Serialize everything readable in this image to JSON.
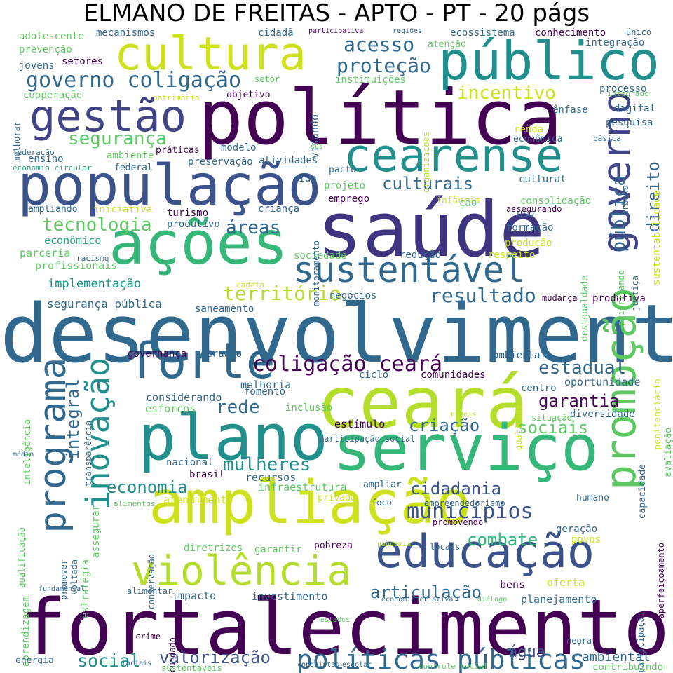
{
  "title": "ELMANO DE FREITAS - APTO - PT - 20 págs",
  "palette": {
    "dark_purple": "#440154",
    "indigo": "#3b528b",
    "slate_blue": "#414487",
    "teal": "#21908d",
    "steel_blue": "#31688e",
    "green": "#35b779",
    "light_green": "#5ec962",
    "lime": "#b5de2b",
    "yellow": "#cde11d",
    "light_teal": "#22a884"
  },
  "words": [
    {
      "text": "desenvolvimento",
      "color": "#31688e"
    },
    {
      "text": "fortalecimento",
      "color": "#440154"
    },
    {
      "text": "política",
      "color": "#440154"
    },
    {
      "text": "saúde",
      "color": "#3e3580"
    },
    {
      "text": "ceará",
      "color": "#b5de2b"
    },
    {
      "text": "serviço",
      "color": "#35b779"
    },
    {
      "text": "plano",
      "color": "#21908d"
    },
    {
      "text": "ampliação",
      "color": "#cde11d"
    },
    {
      "text": "população",
      "color": "#3b528b"
    },
    {
      "text": "ações",
      "color": "#35b779"
    },
    {
      "text": "cultura",
      "color": "#cde11d"
    },
    {
      "text": "público",
      "color": "#21908d"
    },
    {
      "text": "gestão",
      "color": "#414487"
    },
    {
      "text": "educação",
      "color": "#3b528b"
    },
    {
      "text": "cearense",
      "color": "#21908d"
    },
    {
      "text": "forte",
      "color": "#31688e"
    },
    {
      "text": "violência",
      "color": "#b5de2b"
    },
    {
      "text": "programa",
      "color": "#31688e"
    },
    {
      "text": "promoção",
      "color": "#5ec962"
    },
    {
      "text": "governo",
      "color": "#414487"
    },
    {
      "text": "sustentável",
      "color": "#31688e"
    },
    {
      "text": "inovação",
      "color": "#21908d"
    },
    {
      "text": "políticas públicas",
      "color": "#31688e"
    },
    {
      "text": "coligação ceará",
      "color": "#440154"
    },
    {
      "text": "municípios",
      "color": "#3b528b"
    },
    {
      "text": "território",
      "color": "#b5de2b"
    },
    {
      "text": "resultado",
      "color": "#31688e"
    },
    {
      "text": "segurança",
      "color": "#5ec962"
    },
    {
      "text": "governo coligação",
      "color": "#31688e"
    },
    {
      "text": "proteção",
      "color": "#31688e"
    },
    {
      "text": "acesso",
      "color": "#31688e"
    },
    {
      "text": "incentivo",
      "color": "#cde11d"
    },
    {
      "text": "tecnologia",
      "color": "#5ec962"
    },
    {
      "text": "culturais",
      "color": "#31688e"
    },
    {
      "text": "pública",
      "color": "#31688e"
    },
    {
      "text": "direito",
      "color": "#31688e"
    },
    {
      "text": "áreas",
      "color": "#31688e"
    },
    {
      "text": "estadual",
      "color": "#31688e"
    },
    {
      "text": "garantia",
      "color": "#440154"
    },
    {
      "text": "sociais",
      "color": "#5ec962"
    },
    {
      "text": "criação",
      "color": "#31688e"
    },
    {
      "text": "rede",
      "color": "#31688e"
    },
    {
      "text": "integral",
      "color": "#31688e"
    },
    {
      "text": "mulheres",
      "color": "#21908d"
    },
    {
      "text": "economia",
      "color": "#21908d"
    },
    {
      "text": "cidadania",
      "color": "#3b528b"
    },
    {
      "text": "combate",
      "color": "#35b779"
    },
    {
      "text": "articulação",
      "color": "#31688e"
    },
    {
      "text": "social",
      "color": "#21908d"
    },
    {
      "text": "valorização",
      "color": "#3b528b"
    },
    {
      "text": "água",
      "color": "#3b528b"
    },
    {
      "text": "ambiental",
      "color": "#31688e"
    },
    {
      "text": "implementação",
      "color": "#21908d"
    },
    {
      "text": "segurança pública",
      "color": "#31688e"
    },
    {
      "text": "profissionais",
      "color": "#5ec962"
    },
    {
      "text": "econômico",
      "color": "#22a884"
    },
    {
      "text": "parceria",
      "color": "#5ec962"
    },
    {
      "text": "investimento",
      "color": "#31688e"
    },
    {
      "text": "impacto",
      "color": "#31688e"
    },
    {
      "text": "planejamento",
      "color": "#31688e"
    },
    {
      "text": "oferta",
      "color": "#cde11d"
    },
    {
      "text": "bens",
      "color": "#440154"
    },
    {
      "text": "infraestrutura",
      "color": "#5ec962"
    },
    {
      "text": "recursos",
      "color": "#31688e"
    },
    {
      "text": "atendimento",
      "color": "#cde11d"
    },
    {
      "text": "oportunidade",
      "color": "#31688e"
    },
    {
      "text": "diversidade",
      "color": "#31688e"
    },
    {
      "text": "estímulo",
      "color": "#440154"
    },
    {
      "text": "melhoria",
      "color": "#31688e"
    },
    {
      "text": "considerando",
      "color": "#31688e"
    },
    {
      "text": "esforços",
      "color": "#5ec962"
    },
    {
      "text": "fomento",
      "color": "#31688e"
    },
    {
      "text": "inclusão",
      "color": "#5ec962"
    },
    {
      "text": "gerando",
      "color": "#31688e"
    },
    {
      "text": "governança",
      "color": "#440154"
    },
    {
      "text": "ambientais",
      "color": "#31688e"
    },
    {
      "text": "ciclo",
      "color": "#31688e"
    },
    {
      "text": "comunidades",
      "color": "#440154"
    },
    {
      "text": "centro",
      "color": "#31688e"
    },
    {
      "text": "situação",
      "color": "#5ec962"
    },
    {
      "text": "produtiva",
      "color": "#440154"
    },
    {
      "text": "mudança",
      "color": "#440154"
    },
    {
      "text": "negócios",
      "color": "#31688e"
    },
    {
      "text": "saneamento",
      "color": "#31688e"
    },
    {
      "text": "cadeia",
      "color": "#cde11d"
    },
    {
      "text": "sociedade",
      "color": "#5ec962"
    },
    {
      "text": "redução",
      "color": "#31688e"
    },
    {
      "text": "respeito",
      "color": "#cde11d"
    },
    {
      "text": "produção",
      "color": "#cde11d"
    },
    {
      "text": "formação",
      "color": "#31688e"
    },
    {
      "text": "uso",
      "color": "#31688e"
    },
    {
      "text": "assegurando",
      "color": "#440154"
    },
    {
      "text": "consolidação",
      "color": "#5ec962"
    },
    {
      "text": "infância",
      "color": "#cde11d"
    },
    {
      "text": "ção",
      "color": "#5ec962"
    },
    {
      "text": "cultural",
      "color": "#31688e"
    },
    {
      "text": "emprego",
      "color": "#440154"
    },
    {
      "text": "projeto",
      "color": "#5ec962"
    },
    {
      "text": "pacto",
      "color": "#31688e"
    },
    {
      "text": "vida",
      "color": "#31688e"
    },
    {
      "text": "atividades",
      "color": "#31688e"
    },
    {
      "text": "preservação",
      "color": "#31688e"
    },
    {
      "text": "criança",
      "color": "#31688e"
    },
    {
      "text": "turismo",
      "color": "#440154"
    },
    {
      "text": "produtivo",
      "color": "#31688e"
    },
    {
      "text": "iniciativa",
      "color": "#cde11d"
    },
    {
      "text": "ampliando",
      "color": "#31688e"
    },
    {
      "text": "modelo",
      "color": "#31688e"
    },
    {
      "text": "práticas",
      "color": "#440154"
    },
    {
      "text": "ambiente",
      "color": "#5ec962"
    },
    {
      "text": "ensino",
      "color": "#31688e"
    },
    {
      "text": "federal",
      "color": "#31688e"
    },
    {
      "text": "economia circular",
      "color": "#22a884"
    },
    {
      "text": "federação",
      "color": "#31688e"
    },
    {
      "text": "racismo",
      "color": "#31688e"
    },
    {
      "text": "objetivo",
      "color": "#440154"
    },
    {
      "text": "visando",
      "color": "#31688e"
    },
    {
      "text": "instituições",
      "color": "#5ec962"
    },
    {
      "text": "setor",
      "color": "#5ec962"
    },
    {
      "text": "patrimônio",
      "color": "#cde11d"
    },
    {
      "text": "cooperação",
      "color": "#5ec962"
    },
    {
      "text": "jovens",
      "color": "#31688e"
    },
    {
      "text": "setores",
      "color": "#440154"
    },
    {
      "text": "prevenção",
      "color": "#5ec962"
    },
    {
      "text": "adolescente",
      "color": "#5ec962"
    },
    {
      "text": "mecanismos",
      "color": "#31688e"
    },
    {
      "text": "cidadã",
      "color": "#31688e"
    },
    {
      "text": "participativa",
      "color": "#440154"
    },
    {
      "text": "regiões",
      "color": "#31688e"
    },
    {
      "text": "ecossistema",
      "color": "#31688e"
    },
    {
      "text": "conhecimento",
      "color": "#440154"
    },
    {
      "text": "único",
      "color": "#31688e"
    },
    {
      "text": "atenção",
      "color": "#5ec962"
    },
    {
      "text": "integração",
      "color": "#31688e"
    },
    {
      "text": "processo",
      "color": "#31688e"
    },
    {
      "text": "integrado",
      "color": "#5ec962"
    },
    {
      "text": "ênfase",
      "color": "#31688e"
    },
    {
      "text": "digital",
      "color": "#31688e"
    },
    {
      "text": "pesquisa",
      "color": "#31688e"
    },
    {
      "text": "básica",
      "color": "#31688e"
    },
    {
      "text": "renda",
      "color": "#cde11d"
    },
    {
      "text": "econômica",
      "color": "#31688e"
    },
    {
      "text": "melhorar",
      "color": "#31688e"
    },
    {
      "text": "sus",
      "color": "#5ec962"
    },
    {
      "text": "organizações",
      "color": "#b5de2b"
    },
    {
      "text": "urbana",
      "color": "#31688e"
    },
    {
      "text": "sustentabilidade",
      "color": "#cde11d"
    },
    {
      "text": "desigualdade",
      "color": "#5ec962"
    },
    {
      "text": "justiça",
      "color": "#31688e"
    },
    {
      "text": "priorizando",
      "color": "#5ec962"
    },
    {
      "text": "monitoramento",
      "color": "#31688e"
    },
    {
      "text": "penitenciário",
      "color": "#cde11d"
    },
    {
      "text": "inteligência",
      "color": "#5ec962"
    },
    {
      "text": "transparência",
      "color": "#31688e"
    },
    {
      "text": "qualidade",
      "color": "#cde11d"
    },
    {
      "text": "avaliação",
      "color": "#5ec962"
    },
    {
      "text": "capacidade",
      "color": "#31688e"
    },
    {
      "text": "níveis",
      "color": "#b5de2b"
    },
    {
      "text": "participação social",
      "color": "#31688e"
    },
    {
      "text": "médio",
      "color": "#31688e"
    },
    {
      "text": "qualificação",
      "color": "#5ec962"
    },
    {
      "text": "aprendizagem",
      "color": "#5ec962"
    },
    {
      "text": "promover",
      "color": "#31688e"
    },
    {
      "text": "voltada",
      "color": "#31688e"
    },
    {
      "text": "estratégia",
      "color": "#5ec962"
    },
    {
      "text": "assegurar",
      "color": "#5ec962"
    },
    {
      "text": "nacional",
      "color": "#31688e"
    },
    {
      "text": "brasil",
      "color": "#440154"
    },
    {
      "text": "alimentos",
      "color": "#5ec962"
    },
    {
      "text": "privada",
      "color": "#cde11d"
    },
    {
      "text": "ampliar",
      "color": "#31688e"
    },
    {
      "text": "foco",
      "color": "#31688e"
    },
    {
      "text": "empreendedorismo",
      "color": "#31688e"
    },
    {
      "text": "humano",
      "color": "#31688e"
    },
    {
      "text": "aperfeiçoamento",
      "color": "#440154"
    },
    {
      "text": "promovendo",
      "color": "#440154"
    },
    {
      "text": "geração",
      "color": "#31688e"
    },
    {
      "text": "povos",
      "color": "#cde11d"
    },
    {
      "text": "locais",
      "color": "#31688e"
    },
    {
      "text": "pandemia",
      "color": "#b5de2b"
    },
    {
      "text": "pobreza",
      "color": "#440154"
    },
    {
      "text": "garantir",
      "color": "#5ec962"
    },
    {
      "text": "diretrizes",
      "color": "#5ec962"
    },
    {
      "text": "conservação",
      "color": "#31688e"
    },
    {
      "text": "fundamental",
      "color": "#31688e"
    },
    {
      "text": "alimentar",
      "color": "#31688e"
    },
    {
      "text": "economia criativa",
      "color": "#31688e"
    },
    {
      "text": "diálogo",
      "color": "#5ec962"
    },
    {
      "text": "participação",
      "color": "#31688e"
    },
    {
      "text": "estados",
      "color": "#5ec962"
    },
    {
      "text": "crime",
      "color": "#440154"
    },
    {
      "text": "cuidado",
      "color": "#440154"
    },
    {
      "text": "negra",
      "color": "#31688e"
    },
    {
      "text": "energia",
      "color": "#31688e"
    },
    {
      "text": "raciais",
      "color": "#31688e"
    },
    {
      "text": "sustentáveis",
      "color": "#5ec962"
    },
    {
      "text": "conquistas",
      "color": "#31688e"
    },
    {
      "text": "escolar",
      "color": "#31688e"
    },
    {
      "text": "controle social",
      "color": "#5ec962"
    },
    {
      "text": "contribuindo",
      "color": "#5ec962"
    }
  ]
}
